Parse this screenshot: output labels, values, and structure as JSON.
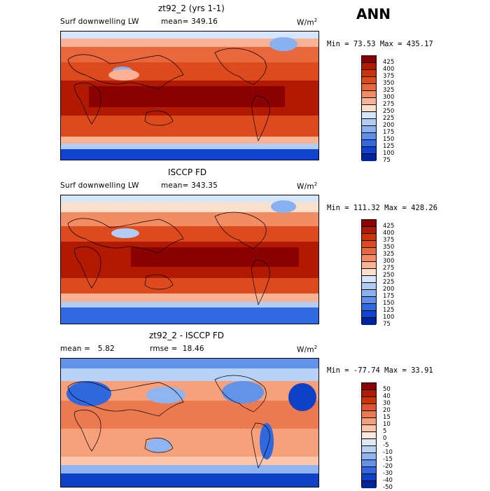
{
  "header": {
    "season": "ANN"
  },
  "panels": [
    {
      "title": "zt92_2 (yrs 1-1)",
      "left_label": "Surf downwelling LW",
      "mean_text": "mean= 349.16",
      "rmse_text": "",
      "units": "W/m",
      "units_sup": "2",
      "minmax_text": "Min =  73.53 Max = 435.17",
      "levels": [
        "425",
        "400",
        "375",
        "350",
        "325",
        "300",
        "275",
        "250",
        "225",
        "200",
        "175",
        "150",
        "125",
        "100",
        "75"
      ],
      "colors": [
        "#8b0000",
        "#b11a00",
        "#cc3300",
        "#dd4a1e",
        "#e8673c",
        "#f28c62",
        "#f9b394",
        "#fde0cc",
        "#d6e6fa",
        "#b1cdf5",
        "#88b1f0",
        "#5c90ea",
        "#2f6ae2",
        "#0d45d0",
        "#00239e"
      ]
    },
    {
      "title": "ISCCP FD",
      "left_label": "Surf downwelling LW",
      "mean_text": "mean= 343.35",
      "rmse_text": "",
      "units": "W/m",
      "units_sup": "2",
      "minmax_text": "Min = 111.32 Max = 428.26",
      "levels": [
        "425",
        "400",
        "375",
        "350",
        "325",
        "300",
        "275",
        "250",
        "225",
        "200",
        "175",
        "150",
        "125",
        "100",
        "75"
      ],
      "colors": [
        "#8b0000",
        "#b11a00",
        "#cc3300",
        "#dd4a1e",
        "#e8673c",
        "#f28c62",
        "#f9b394",
        "#fde0cc",
        "#d6e6fa",
        "#b1cdf5",
        "#88b1f0",
        "#5c90ea",
        "#2f6ae2",
        "#0d45d0",
        "#00239e"
      ]
    },
    {
      "title": "zt92_2 - ISCCP FD",
      "left_label": "mean =   5.82",
      "mean_text": "",
      "rmse_text": "rmse =  18.46",
      "units": "W/m",
      "units_sup": "2",
      "minmax_text": "Min = -77.74 Max =  33.91",
      "levels": [
        "50",
        "40",
        "30",
        "20",
        "15",
        "10",
        "5",
        "0",
        "-5",
        "-10",
        "-15",
        "-20",
        "-30",
        "-40",
        "-50"
      ],
      "colors": [
        "#8b0000",
        "#b11a00",
        "#cc3300",
        "#e05530",
        "#ec7a50",
        "#f6a07c",
        "#fbc6ab",
        "#fde8dc",
        "#dce9fb",
        "#b8d1f6",
        "#8fb5f0",
        "#6193e9",
        "#3068df",
        "#0e40c8",
        "#00239e"
      ]
    }
  ]
}
